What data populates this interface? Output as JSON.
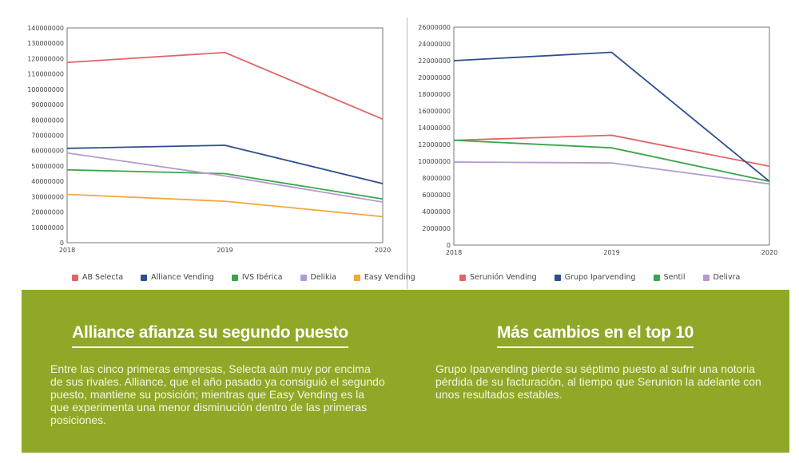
{
  "chart_data": [
    {
      "type": "line",
      "x": [
        "2018",
        "2019",
        "2020"
      ],
      "ylim": [
        0,
        140000000
      ],
      "yticks": [
        "0",
        "10000000",
        "20000000",
        "30000000",
        "40000000",
        "50000000",
        "60000000",
        "70000000",
        "80000000",
        "90000000",
        "100000000",
        "110000000",
        "120000000",
        "130000000",
        "140000000"
      ],
      "legend_position": "bottom",
      "series": [
        {
          "name": "AB Selecta",
          "color": "#e06666",
          "values": [
            117500000,
            124000000,
            80500000
          ]
        },
        {
          "name": "Alliance Vending",
          "color": "#2e4e8f",
          "values": [
            61500000,
            63500000,
            38500000
          ]
        },
        {
          "name": "IVS Ibérica",
          "color": "#3aa64c",
          "values": [
            47500000,
            45000000,
            28500000
          ]
        },
        {
          "name": "Delikia",
          "color": "#b49ad0",
          "values": [
            58500000,
            43500000,
            26500000
          ]
        },
        {
          "name": "Easy Vending",
          "color": "#f0a840",
          "values": [
            31500000,
            27000000,
            17000000
          ]
        }
      ]
    },
    {
      "type": "line",
      "x": [
        "2018",
        "2019",
        "2020"
      ],
      "ylim": [
        0,
        26000000
      ],
      "yticks": [
        "0",
        "2000000",
        "4000000",
        "6000000",
        "8000000",
        "10000000",
        "12000000",
        "14000000",
        "16000000",
        "18000000",
        "20000000",
        "22000000",
        "24000000",
        "26000000"
      ],
      "legend_position": "bottom",
      "series": [
        {
          "name": "Serunión Vending",
          "color": "#e06666",
          "values": [
            12500000,
            13100000,
            9400000
          ]
        },
        {
          "name": "Grupo Iparvending",
          "color": "#2e4e8f",
          "values": [
            22000000,
            23000000,
            7600000
          ]
        },
        {
          "name": "Sentil",
          "color": "#3aa64c",
          "values": [
            12500000,
            11600000,
            7600000
          ]
        },
        {
          "name": "Delivra",
          "color": "#b49ad0",
          "values": [
            9900000,
            9800000,
            7300000
          ]
        }
      ]
    }
  ],
  "panel": {
    "left": {
      "title": "Alliance afianza su segundo puesto",
      "body": "Entre las cinco primeras empresas, Selecta aún muy por encima de sus rivales. Alliance, que el año pasado ya consiguió el segundo puesto, mantiene su posición; mientras que Easy Vending es la que experimenta una menor disminución dentro de las primeras posiciones."
    },
    "right": {
      "title": "Más cambios en el top 10",
      "body": "Grupo Iparvending pierde su séptimo puesto al sufrir una notoria pérdida de su facturación, al tiempo que Serunion la adelante con unos resultados estables."
    }
  }
}
